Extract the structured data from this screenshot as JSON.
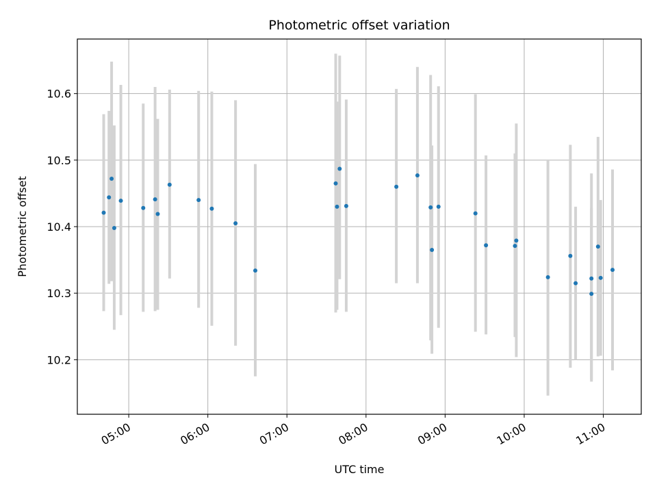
{
  "chart_data": {
    "type": "scatter",
    "title": "Photometric offset variation",
    "xlabel": "UTC time",
    "ylabel": "Photometric offset",
    "x_tick_labels": [
      "05:00",
      "06:00",
      "07:00",
      "08:00",
      "09:00",
      "10:00",
      "11:00"
    ],
    "y_tick_labels": [
      "10.2",
      "10.3",
      "10.4",
      "10.5",
      "10.6"
    ],
    "x_ticks_hours": [
      5,
      6,
      7,
      8,
      9,
      10,
      11
    ],
    "y_ticks": [
      10.2,
      10.3,
      10.4,
      10.5,
      10.6
    ],
    "xlim_hours": [
      4.35,
      11.48
    ],
    "ylim": [
      10.118,
      10.682
    ],
    "grid": true,
    "colors": {
      "marker": "#1f77b4",
      "errorbar": "#d3d3d3",
      "grid": "#b0b0b0"
    },
    "points": [
      {
        "t": "04:41",
        "y": 10.421,
        "ylo": 10.273,
        "yhi": 10.569
      },
      {
        "t": "04:45",
        "y": 10.444,
        "ylo": 10.314,
        "yhi": 10.574
      },
      {
        "t": "04:47",
        "y": 10.472,
        "ylo": 10.318,
        "yhi": 10.648
      },
      {
        "t": "04:49",
        "y": 10.398,
        "ylo": 10.245,
        "yhi": 10.552
      },
      {
        "t": "04:54",
        "y": 10.439,
        "ylo": 10.267,
        "yhi": 10.613
      },
      {
        "t": "05:11",
        "y": 10.428,
        "ylo": 10.272,
        "yhi": 10.585
      },
      {
        "t": "05:20",
        "y": 10.441,
        "ylo": 10.273,
        "yhi": 10.61
      },
      {
        "t": "05:22",
        "y": 10.419,
        "ylo": 10.275,
        "yhi": 10.562
      },
      {
        "t": "05:31",
        "y": 10.463,
        "ylo": 10.322,
        "yhi": 10.606
      },
      {
        "t": "05:53",
        "y": 10.44,
        "ylo": 10.278,
        "yhi": 10.604
      },
      {
        "t": "06:03",
        "y": 10.427,
        "ylo": 10.251,
        "yhi": 10.603
      },
      {
        "t": "06:21",
        "y": 10.405,
        "ylo": 10.221,
        "yhi": 10.59
      },
      {
        "t": "06:36",
        "y": 10.334,
        "ylo": 10.175,
        "yhi": 10.494
      },
      {
        "t": "07:37",
        "y": 10.465,
        "ylo": 10.271,
        "yhi": 10.66
      },
      {
        "t": "07:38",
        "y": 10.43,
        "ylo": 10.275,
        "yhi": 10.588
      },
      {
        "t": "07:40",
        "y": 10.487,
        "ylo": 10.321,
        "yhi": 10.657
      },
      {
        "t": "07:45",
        "y": 10.431,
        "ylo": 10.272,
        "yhi": 10.591
      },
      {
        "t": "08:23",
        "y": 10.46,
        "ylo": 10.315,
        "yhi": 10.607
      },
      {
        "t": "08:39",
        "y": 10.477,
        "ylo": 10.315,
        "yhi": 10.64
      },
      {
        "t": "08:49",
        "y": 10.429,
        "ylo": 10.229,
        "yhi": 10.628
      },
      {
        "t": "08:50",
        "y": 10.365,
        "ylo": 10.209,
        "yhi": 10.522
      },
      {
        "t": "08:55",
        "y": 10.43,
        "ylo": 10.248,
        "yhi": 10.611
      },
      {
        "t": "09:23",
        "y": 10.42,
        "ylo": 10.242,
        "yhi": 10.599
      },
      {
        "t": "09:31",
        "y": 10.372,
        "ylo": 10.238,
        "yhi": 10.507
      },
      {
        "t": "09:53",
        "y": 10.371,
        "ylo": 10.234,
        "yhi": 10.51
      },
      {
        "t": "09:54",
        "y": 10.379,
        "ylo": 10.204,
        "yhi": 10.555
      },
      {
        "t": "10:18",
        "y": 10.324,
        "ylo": 10.146,
        "yhi": 10.501
      },
      {
        "t": "10:35",
        "y": 10.356,
        "ylo": 10.188,
        "yhi": 10.523
      },
      {
        "t": "10:39",
        "y": 10.315,
        "ylo": 10.2,
        "yhi": 10.43
      },
      {
        "t": "10:51",
        "y": 10.322,
        "ylo": 10.167,
        "yhi": 10.48
      },
      {
        "t": "10:51",
        "y": 10.299,
        "ylo": 10.17,
        "yhi": 10.428
      },
      {
        "t": "10:56",
        "y": 10.37,
        "ylo": 10.205,
        "yhi": 10.535
      },
      {
        "t": "10:58",
        "y": 10.323,
        "ylo": 10.206,
        "yhi": 10.44
      },
      {
        "t": "11:07",
        "y": 10.335,
        "ylo": 10.184,
        "yhi": 10.486
      }
    ]
  }
}
